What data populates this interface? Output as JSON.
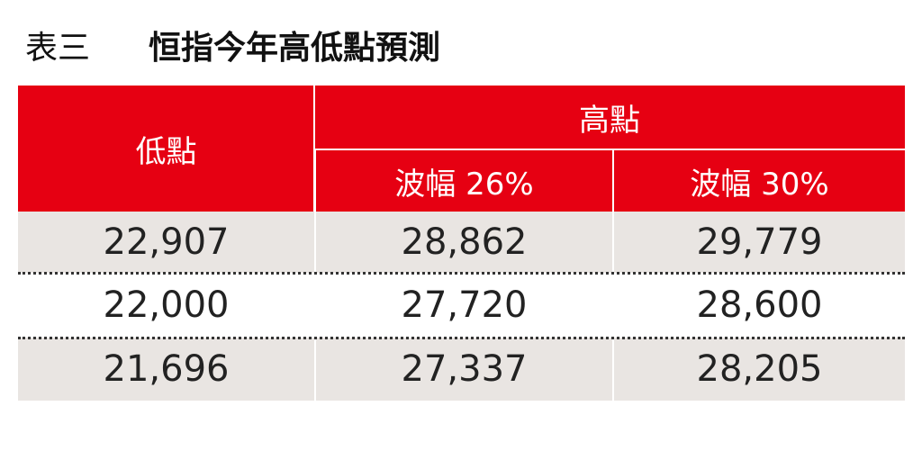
{
  "title": {
    "label": "表三",
    "text": "恒指今年高低點預測"
  },
  "table": {
    "header": {
      "low": "低點",
      "high": "高點",
      "sub": [
        "波幅 26%",
        "波幅 30%"
      ]
    },
    "rows": [
      [
        "22,907",
        "28,862",
        "29,779"
      ],
      [
        "22,000",
        "27,720",
        "28,600"
      ],
      [
        "21,696",
        "27,337",
        "28,205"
      ]
    ]
  }
}
